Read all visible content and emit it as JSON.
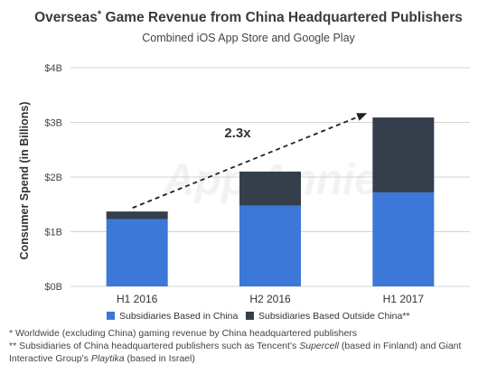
{
  "chart_data": {
    "type": "bar",
    "stacked": true,
    "title": "Overseas",
    "title_mark": "*",
    "title_rest": " Game Revenue from China Headquartered Publishers",
    "subtitle": "Combined iOS App Store and Google Play",
    "ylabel": "Consumer Spend (in Billions)",
    "xlabel": "",
    "categories": [
      "H1 2016",
      "H2 2016",
      "H1 2017"
    ],
    "yticks": [
      "$0B",
      "$1B",
      "$2B",
      "$3B",
      "$4B"
    ],
    "ylim": [
      0,
      4
    ],
    "grid": true,
    "series": [
      {
        "name": "Subsidiaries Based in China",
        "values": [
          1.23,
          1.48,
          1.72
        ]
      },
      {
        "name": "Subsidiaries Based Outside China**",
        "values": [
          0.14,
          0.62,
          1.37
        ]
      }
    ],
    "annotation": {
      "text": "2.3x",
      "arrow": "dashed, from H1 2016 bar top to H1 2017 bar top"
    },
    "watermark": "App Annie",
    "legend": "bottom"
  },
  "colors": {
    "china": "#3b78d8",
    "outside": "#343f4b",
    "grid": "#d3d3d3",
    "text": "#333333"
  },
  "footnotes": {
    "line1": "* Worldwide (excluding China) gaming revenue by China headquartered publishers",
    "line2_a": "** Subsidiaries of China headquartered publishers such as Tencent’s ",
    "line2_b": "Supercell",
    "line2_c": " (based in Finland) and Giant",
    "line3_a": "Interactive Group’s ",
    "line3_b": "Playtika",
    "line3_c": " (based in Israel)"
  }
}
